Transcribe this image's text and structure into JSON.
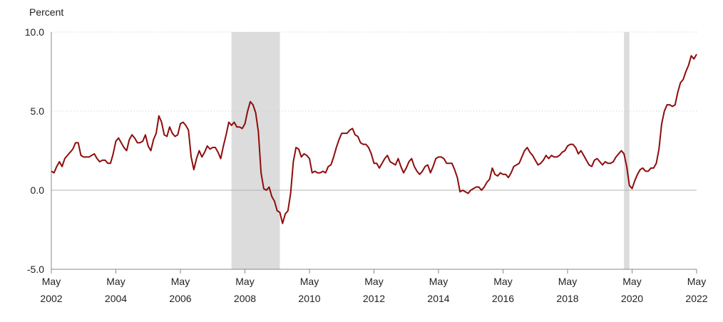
{
  "chart_data": {
    "type": "line",
    "y_axis_label": "Percent",
    "x": [
      "2002-05",
      "2002-06",
      "2002-07",
      "2002-08",
      "2002-09",
      "2002-10",
      "2002-11",
      "2002-12",
      "2003-01",
      "2003-02",
      "2003-03",
      "2003-04",
      "2003-05",
      "2003-06",
      "2003-07",
      "2003-08",
      "2003-09",
      "2003-10",
      "2003-11",
      "2003-12",
      "2004-01",
      "2004-02",
      "2004-03",
      "2004-04",
      "2004-05",
      "2004-06",
      "2004-07",
      "2004-08",
      "2004-09",
      "2004-10",
      "2004-11",
      "2004-12",
      "2005-01",
      "2005-02",
      "2005-03",
      "2005-04",
      "2005-05",
      "2005-06",
      "2005-07",
      "2005-08",
      "2005-09",
      "2005-10",
      "2005-11",
      "2005-12",
      "2006-01",
      "2006-02",
      "2006-03",
      "2006-04",
      "2006-05",
      "2006-06",
      "2006-07",
      "2006-08",
      "2006-09",
      "2006-10",
      "2006-11",
      "2006-12",
      "2007-01",
      "2007-02",
      "2007-03",
      "2007-04",
      "2007-05",
      "2007-06",
      "2007-07",
      "2007-08",
      "2007-09",
      "2007-10",
      "2007-11",
      "2007-12",
      "2008-01",
      "2008-02",
      "2008-03",
      "2008-04",
      "2008-05",
      "2008-06",
      "2008-07",
      "2008-08",
      "2008-09",
      "2008-10",
      "2008-11",
      "2008-12",
      "2009-01",
      "2009-02",
      "2009-03",
      "2009-04",
      "2009-05",
      "2009-06",
      "2009-07",
      "2009-08",
      "2009-09",
      "2009-10",
      "2009-11",
      "2009-12",
      "2010-01",
      "2010-02",
      "2010-03",
      "2010-04",
      "2010-05",
      "2010-06",
      "2010-07",
      "2010-08",
      "2010-09",
      "2010-10",
      "2010-11",
      "2010-12",
      "2011-01",
      "2011-02",
      "2011-03",
      "2011-04",
      "2011-05",
      "2011-06",
      "2011-07",
      "2011-08",
      "2011-09",
      "2011-10",
      "2011-11",
      "2011-12",
      "2012-01",
      "2012-02",
      "2012-03",
      "2012-04",
      "2012-05",
      "2012-06",
      "2012-07",
      "2012-08",
      "2012-09",
      "2012-10",
      "2012-11",
      "2012-12",
      "2013-01",
      "2013-02",
      "2013-03",
      "2013-04",
      "2013-05",
      "2013-06",
      "2013-07",
      "2013-08",
      "2013-09",
      "2013-10",
      "2013-11",
      "2013-12",
      "2014-01",
      "2014-02",
      "2014-03",
      "2014-04",
      "2014-05",
      "2014-06",
      "2014-07",
      "2014-08",
      "2014-09",
      "2014-10",
      "2014-11",
      "2014-12",
      "2015-01",
      "2015-02",
      "2015-03",
      "2015-04",
      "2015-05",
      "2015-06",
      "2015-07",
      "2015-08",
      "2015-09",
      "2015-10",
      "2015-11",
      "2015-12",
      "2016-01",
      "2016-02",
      "2016-03",
      "2016-04",
      "2016-05",
      "2016-06",
      "2016-07",
      "2016-08",
      "2016-09",
      "2016-10",
      "2016-11",
      "2016-12",
      "2017-01",
      "2017-02",
      "2017-03",
      "2017-04",
      "2017-05",
      "2017-06",
      "2017-07",
      "2017-08",
      "2017-09",
      "2017-10",
      "2017-11",
      "2017-12",
      "2018-01",
      "2018-02",
      "2018-03",
      "2018-04",
      "2018-05",
      "2018-06",
      "2018-07",
      "2018-08",
      "2018-09",
      "2018-10",
      "2018-11",
      "2018-12",
      "2019-01",
      "2019-02",
      "2019-03",
      "2019-04",
      "2019-05",
      "2019-06",
      "2019-07",
      "2019-08",
      "2019-09",
      "2019-10",
      "2019-11",
      "2019-12",
      "2020-01",
      "2020-02",
      "2020-03",
      "2020-04",
      "2020-05",
      "2020-06",
      "2020-07",
      "2020-08",
      "2020-09",
      "2020-10",
      "2020-11",
      "2020-12",
      "2021-01",
      "2021-02",
      "2021-03",
      "2021-04",
      "2021-05",
      "2021-06",
      "2021-07",
      "2021-08",
      "2021-09",
      "2021-10",
      "2021-11",
      "2021-12",
      "2022-01",
      "2022-02",
      "2022-03",
      "2022-04",
      "2022-05"
    ],
    "series": [
      {
        "color": "#8e0c0c",
        "values": [
          1.2,
          1.1,
          1.5,
          1.8,
          1.5,
          2.0,
          2.2,
          2.4,
          2.6,
          3.0,
          3.0,
          2.2,
          2.1,
          2.1,
          2.1,
          2.2,
          2.3,
          2.0,
          1.8,
          1.9,
          1.9,
          1.7,
          1.7,
          2.3,
          3.1,
          3.3,
          3.0,
          2.7,
          2.5,
          3.2,
          3.5,
          3.3,
          3.0,
          3.0,
          3.1,
          3.5,
          2.8,
          2.5,
          3.2,
          3.6,
          4.7,
          4.3,
          3.5,
          3.4,
          4.0,
          3.6,
          3.4,
          3.5,
          4.2,
          4.3,
          4.1,
          3.8,
          2.1,
          1.3,
          2.0,
          2.5,
          2.1,
          2.4,
          2.8,
          2.6,
          2.7,
          2.7,
          2.4,
          2.0,
          2.8,
          3.5,
          4.3,
          4.1,
          4.3,
          4.0,
          4.0,
          3.9,
          4.2,
          5.0,
          5.6,
          5.4,
          4.9,
          3.7,
          1.1,
          0.1,
          0.0,
          0.2,
          -0.4,
          -0.7,
          -1.3,
          -1.4,
          -2.1,
          -1.5,
          -1.3,
          -0.2,
          1.8,
          2.7,
          2.6,
          2.1,
          2.3,
          2.2,
          2.0,
          1.1,
          1.2,
          1.1,
          1.1,
          1.2,
          1.1,
          1.5,
          1.6,
          2.1,
          2.7,
          3.2,
          3.6,
          3.6,
          3.6,
          3.8,
          3.9,
          3.5,
          3.4,
          3.0,
          2.9,
          2.9,
          2.7,
          2.3,
          1.7,
          1.7,
          1.4,
          1.7,
          2.0,
          2.2,
          1.8,
          1.7,
          1.6,
          2.0,
          1.5,
          1.1,
          1.4,
          1.8,
          2.0,
          1.5,
          1.2,
          1.0,
          1.2,
          1.5,
          1.6,
          1.1,
          1.5,
          2.0,
          2.1,
          2.1,
          2.0,
          1.7,
          1.7,
          1.7,
          1.3,
          0.8,
          -0.1,
          0.0,
          -0.1,
          -0.2,
          0.0,
          0.1,
          0.2,
          0.2,
          0.0,
          0.2,
          0.5,
          0.7,
          1.4,
          1.0,
          0.9,
          1.1,
          1.0,
          1.0,
          0.8,
          1.1,
          1.5,
          1.6,
          1.7,
          2.1,
          2.5,
          2.7,
          2.4,
          2.2,
          1.9,
          1.6,
          1.7,
          1.9,
          2.2,
          2.0,
          2.2,
          2.1,
          2.1,
          2.2,
          2.4,
          2.5,
          2.8,
          2.9,
          2.9,
          2.7,
          2.3,
          2.5,
          2.2,
          1.9,
          1.6,
          1.5,
          1.9,
          2.0,
          1.8,
          1.6,
          1.8,
          1.7,
          1.7,
          1.8,
          2.1,
          2.3,
          2.5,
          2.3,
          1.5,
          0.3,
          0.1,
          0.6,
          1.0,
          1.3,
          1.4,
          1.2,
          1.2,
          1.4,
          1.4,
          1.7,
          2.6,
          4.2,
          5.0,
          5.4,
          5.4,
          5.3,
          5.4,
          6.2,
          6.8,
          7.0,
          7.5,
          7.9,
          8.5,
          8.3,
          8.6
        ]
      }
    ],
    "shaded_periods": [
      [
        "2007-12",
        "2009-06"
      ],
      [
        "2020-02",
        "2020-04"
      ]
    ],
    "shade_color": "#dcdcdc",
    "xlim": [
      "2002-05",
      "2022-05"
    ],
    "xticks": [
      {
        "value": "2002-05",
        "label": "May 2002"
      },
      {
        "value": "2004-05",
        "label": "May 2004"
      },
      {
        "value": "2006-05",
        "label": "May 2006"
      },
      {
        "value": "2008-05",
        "label": "May 2008"
      },
      {
        "value": "2010-05",
        "label": "May 2010"
      },
      {
        "value": "2012-05",
        "label": "May 2012"
      },
      {
        "value": "2014-05",
        "label": "May 2014"
      },
      {
        "value": "2016-05",
        "label": "May 2016"
      },
      {
        "value": "2018-05",
        "label": "May 2018"
      },
      {
        "value": "2020-05",
        "label": "May 2020"
      },
      {
        "value": "2022-05",
        "label": "May 2022"
      }
    ],
    "ylim": [
      -5,
      10
    ],
    "yticks": [
      {
        "value": -5,
        "label": "-5.0"
      },
      {
        "value": 0,
        "label": "0.0"
      },
      {
        "value": 5,
        "label": "5.0"
      },
      {
        "value": 10,
        "label": "10.0"
      }
    ],
    "grid": true
  }
}
